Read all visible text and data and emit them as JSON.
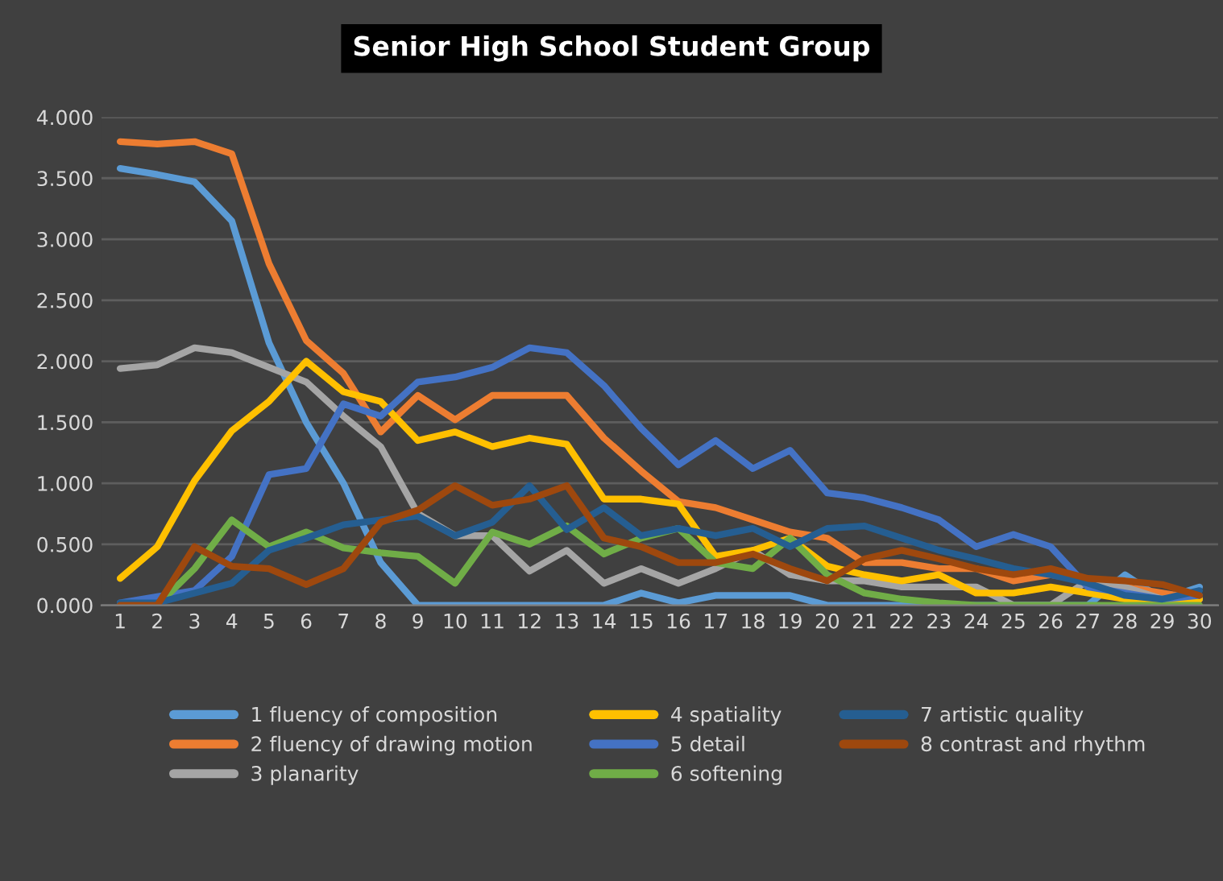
{
  "chart_data": {
    "type": "line",
    "title": "Senior High School Student Group",
    "categories": [
      "1",
      "2",
      "3",
      "4",
      "5",
      "6",
      "7",
      "8",
      "9",
      "10",
      "11",
      "12",
      "13",
      "14",
      "15",
      "16",
      "17",
      "18",
      "19",
      "20",
      "21",
      "22",
      "23",
      "24",
      "25",
      "26",
      "27",
      "28",
      "29",
      "30"
    ],
    "series": [
      {
        "name": "1 fluency of composition",
        "color": "#5b9bd5",
        "values": [
          3.58,
          3.53,
          3.47,
          3.15,
          2.15,
          1.5,
          1.0,
          0.35,
          0,
          0,
          0,
          0,
          0,
          0,
          0.1,
          0.02,
          0.08,
          0.08,
          0.08,
          0,
          0,
          0,
          0,
          0,
          0,
          0,
          0,
          0.25,
          0.05,
          0.15
        ]
      },
      {
        "name": "2 fluency of drawing motion",
        "color": "#ed7d31",
        "values": [
          3.8,
          3.78,
          3.8,
          3.7,
          2.8,
          2.17,
          1.9,
          1.42,
          1.72,
          1.52,
          1.72,
          1.72,
          1.72,
          1.37,
          1.1,
          0.85,
          0.8,
          0.7,
          0.6,
          0.55,
          0.35,
          0.35,
          0.3,
          0.3,
          0.2,
          0.25,
          0.2,
          0.15,
          0.1,
          0.05
        ]
      },
      {
        "name": "3 planarity",
        "color": "#a5a5a5",
        "values": [
          1.94,
          1.97,
          2.11,
          2.07,
          1.95,
          1.83,
          1.55,
          1.3,
          0.75,
          0.57,
          0.57,
          0.28,
          0.45,
          0.18,
          0.3,
          0.18,
          0.3,
          0.45,
          0.25,
          0.2,
          0.2,
          0.15,
          0.15,
          0.15,
          0,
          0,
          0.2,
          0.15,
          0.05,
          0.05
        ]
      },
      {
        "name": "4 spatiality",
        "color": "#ffc000",
        "values": [
          0.22,
          0.48,
          1.02,
          1.43,
          1.67,
          2.0,
          1.75,
          1.67,
          1.35,
          1.42,
          1.3,
          1.37,
          1.32,
          0.87,
          0.87,
          0.83,
          0.4,
          0.45,
          0.55,
          0.32,
          0.25,
          0.2,
          0.25,
          0.1,
          0.1,
          0.15,
          0.1,
          0.05,
          0.05,
          0.05
        ]
      },
      {
        "name": "5 detail",
        "color": "#4472c4",
        "values": [
          0.02,
          0.07,
          0.12,
          0.4,
          1.07,
          1.12,
          1.65,
          1.55,
          1.83,
          1.87,
          1.95,
          2.11,
          2.07,
          1.8,
          1.45,
          1.15,
          1.35,
          1.12,
          1.27,
          0.92,
          0.88,
          0.8,
          0.7,
          0.48,
          0.58,
          0.48,
          0.15,
          0.1,
          0.05,
          0.08
        ]
      },
      {
        "name": "6 softening",
        "color": "#70ad47",
        "values": [
          0,
          0,
          0.3,
          0.7,
          0.48,
          0.6,
          0.47,
          0.43,
          0.4,
          0.18,
          0.6,
          0.5,
          0.65,
          0.42,
          0.55,
          0.63,
          0.35,
          0.3,
          0.55,
          0.25,
          0.1,
          0.05,
          0.02,
          0,
          0,
          0,
          0,
          0,
          0,
          0
        ]
      },
      {
        "name": "7 artistic quality",
        "color": "#255e91",
        "values": [
          0.02,
          0.02,
          0.1,
          0.18,
          0.45,
          0.55,
          0.66,
          0.7,
          0.73,
          0.57,
          0.68,
          0.98,
          0.62,
          0.8,
          0.57,
          0.63,
          0.57,
          0.63,
          0.48,
          0.63,
          0.65,
          0.55,
          0.45,
          0.38,
          0.3,
          0.25,
          0.18,
          0.08,
          0.05,
          0.12
        ]
      },
      {
        "name": "8 contrast and rhythm",
        "color": "#9e480e",
        "values": [
          0,
          0,
          0.48,
          0.32,
          0.3,
          0.17,
          0.3,
          0.68,
          0.78,
          0.98,
          0.82,
          0.87,
          0.98,
          0.55,
          0.48,
          0.35,
          0.35,
          0.42,
          0.3,
          0.2,
          0.38,
          0.45,
          0.38,
          0.3,
          0.25,
          0.3,
          0.22,
          0.2,
          0.17,
          0.08
        ]
      }
    ],
    "ylim": [
      0,
      4
    ],
    "yticks": [
      {
        "value": 0,
        "label": "0.000"
      },
      {
        "value": 0.5,
        "label": "0.500"
      },
      {
        "value": 1,
        "label": "1.000"
      },
      {
        "value": 1.5,
        "label": "1.500"
      },
      {
        "value": 2,
        "label": "2.000"
      },
      {
        "value": 2.5,
        "label": "2.500"
      },
      {
        "value": 3,
        "label": "3.000"
      },
      {
        "value": 3.5,
        "label": "3.500"
      },
      {
        "value": 4,
        "label": "4.000"
      }
    ],
    "grid": "y",
    "legend": "bottom",
    "marker": "none",
    "line_style": "solid"
  }
}
